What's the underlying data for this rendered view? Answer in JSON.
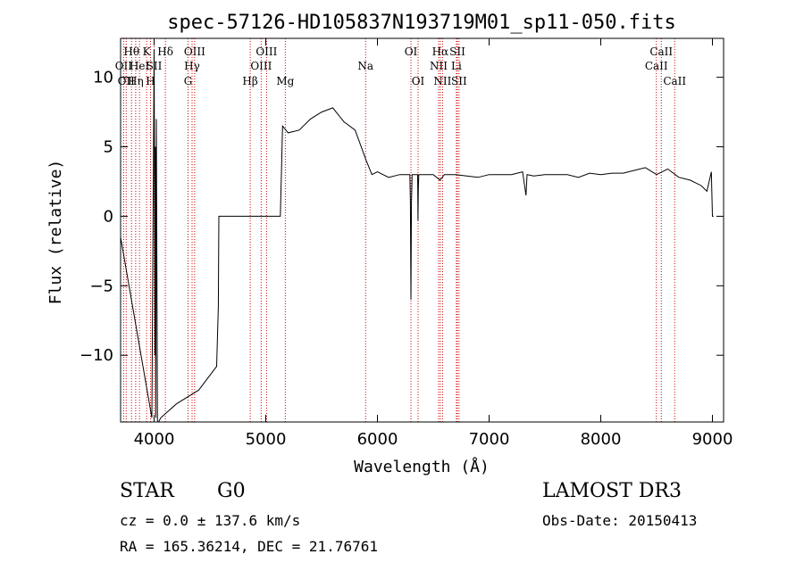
{
  "chart_data": {
    "type": "line",
    "title": "spec-57126-HD105837N193719M01_sp11-050.fits",
    "xlabel": "Wavelength (Å)",
    "ylabel": "Flux (relative)",
    "xlim": [
      3700,
      9100
    ],
    "ylim": [
      -14.8,
      12.8
    ],
    "xticks": [
      4000,
      5000,
      6000,
      7000,
      8000,
      9000
    ],
    "yticks": [
      -10,
      -5,
      0,
      5,
      10
    ],
    "xtick_labels": [
      "4000",
      "5000",
      "6000",
      "7000",
      "8000",
      "9000"
    ],
    "ytick_labels": [
      "−10",
      "−5",
      "0",
      "5",
      "10"
    ],
    "series": [
      {
        "name": "spectrum",
        "x": [
          3700,
          3980,
          4000,
          4005,
          4008,
          4012,
          4015,
          4020,
          4030,
          4040,
          4060,
          4200,
          4400,
          4560,
          4575,
          4580,
          4590,
          4700,
          4900,
          5100,
          5130,
          5140,
          5150,
          5200,
          5300,
          5400,
          5500,
          5600,
          5700,
          5800,
          5900,
          5950,
          6000,
          6100,
          6200,
          6290,
          6295,
          6300,
          6305,
          6310,
          6360,
          6363,
          6366,
          6370,
          6400,
          6500,
          6560,
          6600,
          6700,
          6800,
          6900,
          7000,
          7100,
          7200,
          7300,
          7330,
          7340,
          7400,
          7500,
          7600,
          7700,
          7800,
          7900,
          8000,
          8100,
          8200,
          8300,
          8400,
          8500,
          8600,
          8700,
          8800,
          8900,
          8950,
          8990,
          9000,
          9010
        ],
        "y": [
          -1.5,
          -14.5,
          12.0,
          0.5,
          -10.0,
          5.0,
          -14.5,
          7.0,
          -14.8,
          -14.8,
          -14.5,
          -13.5,
          -12.5,
          -10.8,
          -6.5,
          0.0,
          0.0,
          0.0,
          0.0,
          0.0,
          0.0,
          3.0,
          6.5,
          6.0,
          6.2,
          7.0,
          7.5,
          7.8,
          6.8,
          6.2,
          4.0,
          3.0,
          3.2,
          2.8,
          3.0,
          3.0,
          1.0,
          -6.0,
          1.0,
          3.0,
          3.0,
          -0.3,
          2.0,
          3.0,
          3.0,
          3.0,
          2.6,
          3.0,
          3.0,
          2.9,
          2.8,
          3.0,
          3.0,
          3.0,
          3.2,
          1.5,
          3.0,
          2.9,
          3.0,
          3.0,
          3.0,
          2.8,
          3.1,
          3.0,
          3.1,
          3.1,
          3.3,
          3.5,
          3.0,
          3.4,
          2.8,
          2.6,
          2.2,
          1.8,
          3.2,
          0.0,
          0.0
        ]
      }
    ],
    "line_markers": [
      {
        "wavelength": 3727,
        "label": "OII",
        "row": 2
      },
      {
        "wavelength": 3750,
        "label": "OII",
        "row": 3
      },
      {
        "wavelength": 3798,
        "label": "Hθ",
        "row": 1
      },
      {
        "wavelength": 3835,
        "label": "Hη",
        "row": 3
      },
      {
        "wavelength": 3869,
        "label": "HeI",
        "row": 2
      },
      {
        "wavelength": 3933,
        "label": "K",
        "row": 1
      },
      {
        "wavelength": 3968,
        "label": "H",
        "row": 3
      },
      {
        "wavelength": 4000,
        "label": "SII",
        "row": 2
      },
      {
        "wavelength": 4101,
        "label": "Hδ",
        "row": 1
      },
      {
        "wavelength": 4304,
        "label": "G",
        "row": 3
      },
      {
        "wavelength": 4340,
        "label": "Hγ",
        "row": 2
      },
      {
        "wavelength": 4363,
        "label": "OIII",
        "row": 1
      },
      {
        "wavelength": 4861,
        "label": "Hβ",
        "row": 3
      },
      {
        "wavelength": 4959,
        "label": "OIII",
        "row": 2
      },
      {
        "wavelength": 5007,
        "label": "OIII",
        "row": 1
      },
      {
        "wavelength": 5175,
        "label": "Mg",
        "row": 3
      },
      {
        "wavelength": 5894,
        "label": "Na",
        "row": 2
      },
      {
        "wavelength": 6300,
        "label": "OI",
        "row": 1
      },
      {
        "wavelength": 6364,
        "label": "OI",
        "row": 3
      },
      {
        "wavelength": 6548,
        "label": "NII",
        "row": 2
      },
      {
        "wavelength": 6563,
        "label": "Hα",
        "row": 1
      },
      {
        "wavelength": 6583,
        "label": "NII",
        "row": 3
      },
      {
        "wavelength": 6707,
        "label": "Li",
        "row": 2
      },
      {
        "wavelength": 6716,
        "label": "SII",
        "row": 1
      },
      {
        "wavelength": 6731,
        "label": "SII",
        "row": 3
      },
      {
        "wavelength": 8498,
        "label": "CaII",
        "row": 2
      },
      {
        "wavelength": 8542,
        "label": "CaII",
        "row": 1
      },
      {
        "wavelength": 8662,
        "label": "CaII",
        "row": 3
      }
    ]
  },
  "info": {
    "class": "STAR",
    "subclass": "G0",
    "survey": "LAMOST DR3",
    "redshift": "cz =  0.0 ± 137.6 km/s",
    "obs_date": "Obs-Date: 20150413",
    "coords": "RA = 165.36214, DEC =  21.76761"
  },
  "colors": {
    "marker_line": "#cc0000",
    "spectrum": "#000000"
  }
}
